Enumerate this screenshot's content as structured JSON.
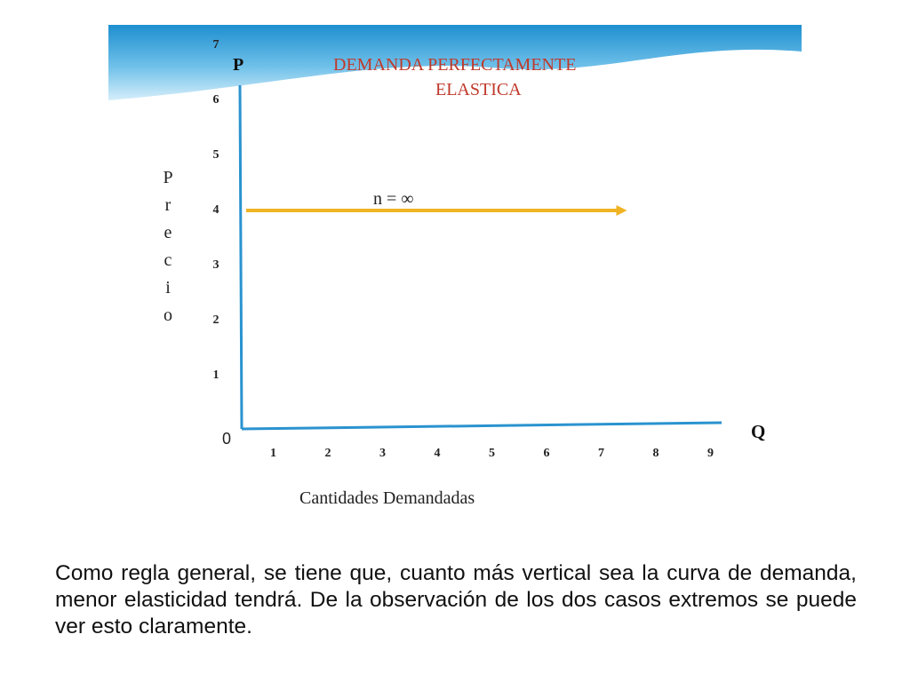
{
  "chart_data": {
    "type": "line",
    "title_line1": "DEMANDA PERFECTAMENTE",
    "title_line2": "ELASTICA",
    "xlabel": "Cantidades Demandadas",
    "ylabel": "Precio",
    "y_axis_symbol": "P",
    "x_axis_symbol": "Q",
    "origin_label": "0",
    "x_ticks": [
      "1",
      "2",
      "3",
      "4",
      "5",
      "6",
      "7",
      "8",
      "9"
    ],
    "y_ticks": [
      "1",
      "2",
      "3",
      "4",
      "5",
      "6",
      "7"
    ],
    "xlim": [
      0,
      9
    ],
    "ylim": [
      0,
      7
    ],
    "series": [
      {
        "x": [
          0,
          7
        ],
        "y": [
          4,
          4
        ],
        "color": "#f0b323"
      }
    ],
    "annotation": "n = ∞",
    "grid": false,
    "axis_color": "#2a93cf",
    "title_color": "#c0392b"
  },
  "caption": "Como regla general, se tiene que, cuanto más vertical sea la curva de demanda, menor elasticidad tendrá. De la observación de los dos casos extremos se puede ver esto claramente."
}
